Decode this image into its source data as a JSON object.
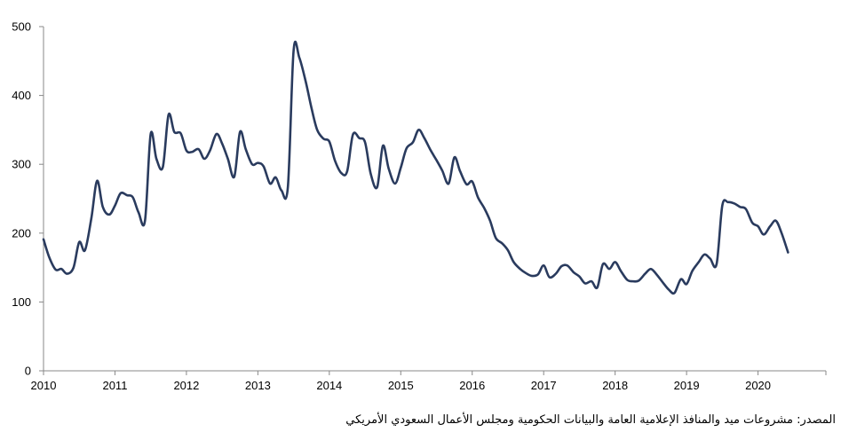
{
  "chart_data": {
    "type": "line",
    "title": "",
    "xlabel": "",
    "ylabel": "",
    "xlim": [
      2010,
      2020.95
    ],
    "ylim": [
      0,
      500
    ],
    "y_ticks": [
      "0",
      "100",
      "200",
      "300",
      "400",
      "500"
    ],
    "x_ticks": [
      "2010",
      "2011",
      "2012",
      "2013",
      "2014",
      "2015",
      "2016",
      "2017",
      "2018",
      "2019",
      "2020"
    ],
    "grid": false,
    "legend": "none",
    "line_color": "#2a3b5e",
    "series": [
      {
        "x": [
          2010.0,
          2010.08,
          2010.17,
          2010.25,
          2010.33,
          2010.42,
          2010.5,
          2010.58,
          2010.67,
          2010.75,
          2010.83,
          2010.92,
          2011.0,
          2011.08,
          2011.17,
          2011.25,
          2011.33,
          2011.42,
          2011.5,
          2011.58,
          2011.67,
          2011.75,
          2011.83,
          2011.92,
          2012.0,
          2012.08,
          2012.17,
          2012.25,
          2012.33,
          2012.42,
          2012.5,
          2012.58,
          2012.67,
          2012.75,
          2012.83,
          2012.92,
          2013.0,
          2013.08,
          2013.17,
          2013.25,
          2013.33,
          2013.42,
          2013.5,
          2013.58,
          2013.67,
          2013.75,
          2013.83,
          2013.92,
          2014.0,
          2014.08,
          2014.17,
          2014.25,
          2014.33,
          2014.42,
          2014.5,
          2014.58,
          2014.67,
          2014.75,
          2014.83,
          2014.92,
          2015.0,
          2015.08,
          2015.17,
          2015.25,
          2015.33,
          2015.42,
          2015.5,
          2015.58,
          2015.67,
          2015.75,
          2015.83,
          2015.92,
          2016.0,
          2016.08,
          2016.17,
          2016.25,
          2016.33,
          2016.42,
          2016.5,
          2016.58,
          2016.67,
          2016.75,
          2016.83,
          2016.92,
          2017.0,
          2017.08,
          2017.17,
          2017.25,
          2017.33,
          2017.42,
          2017.5,
          2017.58,
          2017.67,
          2017.75,
          2017.83,
          2017.92,
          2018.0,
          2018.08,
          2018.17,
          2018.25,
          2018.33,
          2018.42,
          2018.5,
          2018.58,
          2018.67,
          2018.75,
          2018.83,
          2018.92,
          2019.0,
          2019.08,
          2019.17,
          2019.25,
          2019.33,
          2019.42,
          2019.5,
          2019.58,
          2019.67,
          2019.75,
          2019.83,
          2019.92,
          2020.0,
          2020.08,
          2020.17,
          2020.25,
          2020.33,
          2020.42
        ],
        "values": [
          191,
          165,
          147,
          148,
          141,
          150,
          187,
          175,
          222,
          276,
          238,
          227,
          240,
          258,
          255,
          252,
          230,
          218,
          344,
          308,
          296,
          372,
          347,
          345,
          320,
          318,
          322,
          308,
          320,
          344,
          330,
          308,
          282,
          347,
          322,
          300,
          302,
          297,
          272,
          281,
          262,
          267,
          465,
          455,
          420,
          382,
          350,
          337,
          333,
          305,
          287,
          290,
          343,
          338,
          332,
          286,
          267,
          327,
          294,
          272,
          295,
          323,
          332,
          350,
          338,
          320,
          306,
          291,
          272,
          310,
          290,
          271,
          275,
          252,
          236,
          218,
          193,
          185,
          175,
          158,
          148,
          142,
          138,
          140,
          153,
          136,
          141,
          152,
          153,
          143,
          137,
          127,
          130,
          121,
          155,
          148,
          158,
          145,
          132,
          130,
          131,
          141,
          148,
          140,
          128,
          118,
          113,
          133,
          126,
          145,
          158,
          169,
          163,
          155,
          240,
          245,
          243,
          238,
          235,
          215,
          210,
          198,
          210,
          218,
          200,
          172
        ]
      }
    ]
  },
  "source_note": "المصدر: مشروعات ميد والمنافذ الإعلامية العامة والبيانات الحكومية ومجلس الأعمال السعودي الأمريكي"
}
